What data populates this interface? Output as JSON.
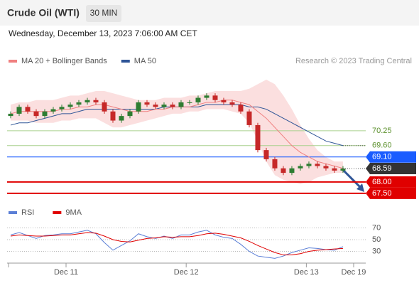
{
  "chart_data": {
    "type": "candlestick",
    "title": "Crude Oil (WTI)",
    "timeframe": "30 MIN",
    "subtitle": "Wednesday, December 13, 2023 7:06:00 AM CET",
    "legend": [
      {
        "name": "MA 20 + Bollinger Bands",
        "color": "#f08080"
      },
      {
        "name": "MA 50",
        "color": "#2f5597"
      }
    ],
    "credit": "Research © 2023 Trading Central",
    "xlim": [
      -0.25,
      41.67
    ],
    "xticks": [
      {
        "value": 6.5,
        "label": "Dec 11"
      },
      {
        "value": 20.6,
        "label": "Dec 12"
      },
      {
        "value": 34.7,
        "label": "Dec 13"
      },
      {
        "value": 40.25,
        "label": "Dec 19"
      }
    ],
    "ylim": [
      67.09,
      73.03
    ],
    "open": [
      70.9,
      71.0,
      71.3,
      71.1,
      70.9,
      71.1,
      71.2,
      71.3,
      71.4,
      71.5,
      71.6,
      71.5,
      71.1,
      70.7,
      70.9,
      71.1,
      71.5,
      71.4,
      71.3,
      71.4,
      71.3,
      71.5,
      71.5,
      71.7,
      71.8,
      71.6,
      71.5,
      71.4,
      71.1,
      70.5,
      69.4,
      69.0,
      68.6,
      68.4,
      68.6,
      68.7,
      68.8,
      68.7,
      68.6,
      68.5
    ],
    "high": [
      71.1,
      71.4,
      71.4,
      71.2,
      71.2,
      71.3,
      71.4,
      71.5,
      71.6,
      71.7,
      71.7,
      71.6,
      71.2,
      71.0,
      71.2,
      71.6,
      71.6,
      71.5,
      71.5,
      71.5,
      71.6,
      71.6,
      71.8,
      71.9,
      71.9,
      71.7,
      71.6,
      71.5,
      71.2,
      70.6,
      69.5,
      69.1,
      68.7,
      68.7,
      68.8,
      68.9,
      68.9,
      68.8,
      68.7,
      68.7
    ],
    "low": [
      70.8,
      70.9,
      71.0,
      70.8,
      70.8,
      71.0,
      71.1,
      71.2,
      71.3,
      71.4,
      71.4,
      71.0,
      70.6,
      70.6,
      70.8,
      71.0,
      71.3,
      71.2,
      71.2,
      71.2,
      71.2,
      71.4,
      71.4,
      71.6,
      71.5,
      71.4,
      71.3,
      71.0,
      70.4,
      69.3,
      68.9,
      68.5,
      68.3,
      68.3,
      68.5,
      68.6,
      68.6,
      68.5,
      68.4,
      68.4
    ],
    "close": [
      71.0,
      71.3,
      71.1,
      70.9,
      71.1,
      71.2,
      71.3,
      71.4,
      71.5,
      71.6,
      71.5,
      71.1,
      70.7,
      70.9,
      71.1,
      71.5,
      71.4,
      71.3,
      71.4,
      71.3,
      71.5,
      71.5,
      71.7,
      71.8,
      71.6,
      71.5,
      71.4,
      71.1,
      70.5,
      69.4,
      69.0,
      68.6,
      68.4,
      68.6,
      68.7,
      68.8,
      68.7,
      68.6,
      68.5,
      68.59
    ],
    "up_color": "#2e7d32",
    "down_color": "#c62828",
    "bollinger_upper": [
      71.4,
      71.5,
      71.5,
      71.6,
      71.6,
      71.6,
      71.7,
      71.8,
      71.8,
      71.9,
      72.0,
      72.0,
      71.9,
      71.8,
      71.7,
      71.6,
      71.6,
      71.6,
      71.7,
      71.7,
      71.7,
      71.8,
      71.8,
      71.9,
      72.0,
      72.0,
      72.0,
      72.0,
      72.1,
      72.3,
      72.5,
      72.3,
      71.8,
      71.2,
      70.5,
      69.9,
      69.4,
      69.1,
      68.9,
      68.9
    ],
    "bollinger_lower": [
      70.7,
      70.7,
      70.7,
      70.6,
      70.6,
      70.6,
      70.7,
      70.7,
      70.8,
      70.8,
      70.8,
      70.6,
      70.4,
      70.4,
      70.5,
      70.6,
      70.7,
      70.8,
      70.9,
      71.0,
      71.0,
      71.1,
      71.1,
      71.2,
      71.2,
      71.2,
      71.1,
      71.0,
      70.6,
      69.8,
      68.9,
      68.3,
      68.1,
      68.0,
      67.9,
      68.0,
      68.2,
      68.3,
      68.4,
      68.4
    ],
    "ma20": [
      71.0,
      71.1,
      71.1,
      71.1,
      71.1,
      71.1,
      71.2,
      71.2,
      71.3,
      71.3,
      71.4,
      71.4,
      71.3,
      71.2,
      71.1,
      71.1,
      71.1,
      71.2,
      71.2,
      71.3,
      71.3,
      71.3,
      71.4,
      71.5,
      71.5,
      71.6,
      71.6,
      71.5,
      71.4,
      71.1,
      70.8,
      70.4,
      70.0,
      69.6,
      69.3,
      69.1,
      68.9,
      68.8,
      68.7,
      68.6
    ],
    "ma50": [
      70.5,
      70.6,
      70.6,
      70.7,
      70.8,
      70.9,
      71.0,
      71.0,
      71.1,
      71.2,
      71.2,
      71.2,
      71.2,
      71.2,
      71.2,
      71.2,
      71.2,
      71.2,
      71.3,
      71.3,
      71.3,
      71.3,
      71.3,
      71.4,
      71.4,
      71.4,
      71.4,
      71.4,
      71.3,
      71.3,
      71.2,
      71.0,
      70.8,
      70.6,
      70.4,
      70.2,
      70.0,
      69.8,
      69.7,
      69.6
    ],
    "levels": [
      {
        "value": 70.25,
        "label": "70.25",
        "color": "#a9d18e",
        "badge": false
      },
      {
        "value": 69.6,
        "label": "69.60",
        "color": "#a9d18e",
        "badge": false
      },
      {
        "value": 69.1,
        "label": "69.10",
        "color": "#1a5cff",
        "badge": true
      },
      {
        "value": 68.0,
        "label": "68.00",
        "color": "#e00000",
        "badge": true
      },
      {
        "value": 67.5,
        "label": "67.50",
        "color": "#e00000",
        "badge": true
      }
    ],
    "current": {
      "value": 68.59,
      "label": "68.59",
      "color": "#333333"
    },
    "rsi": {
      "legend": [
        {
          "name": "RSI",
          "color": "#5b7fd6"
        },
        {
          "name": "9MA",
          "color": "#e00000"
        }
      ],
      "ylim": [
        13.6,
        82.7
      ],
      "yticks": [
        70,
        50,
        30
      ],
      "values": [
        58,
        62,
        57,
        52,
        57,
        58,
        60,
        60,
        63,
        66,
        60,
        45,
        32,
        40,
        48,
        60,
        55,
        52,
        56,
        52,
        58,
        58,
        63,
        66,
        58,
        54,
        52,
        42,
        30,
        22,
        20,
        18,
        22,
        28,
        32,
        36,
        35,
        33,
        32,
        38
      ],
      "ma_values": [
        56,
        58,
        57,
        56,
        56,
        57,
        58,
        58,
        60,
        62,
        61,
        56,
        50,
        47,
        46,
        49,
        52,
        53,
        55,
        54,
        55,
        55,
        57,
        60,
        61,
        59,
        56,
        53,
        47,
        40,
        34,
        28,
        24,
        24,
        26,
        30,
        32,
        33,
        34,
        35
      ]
    }
  }
}
